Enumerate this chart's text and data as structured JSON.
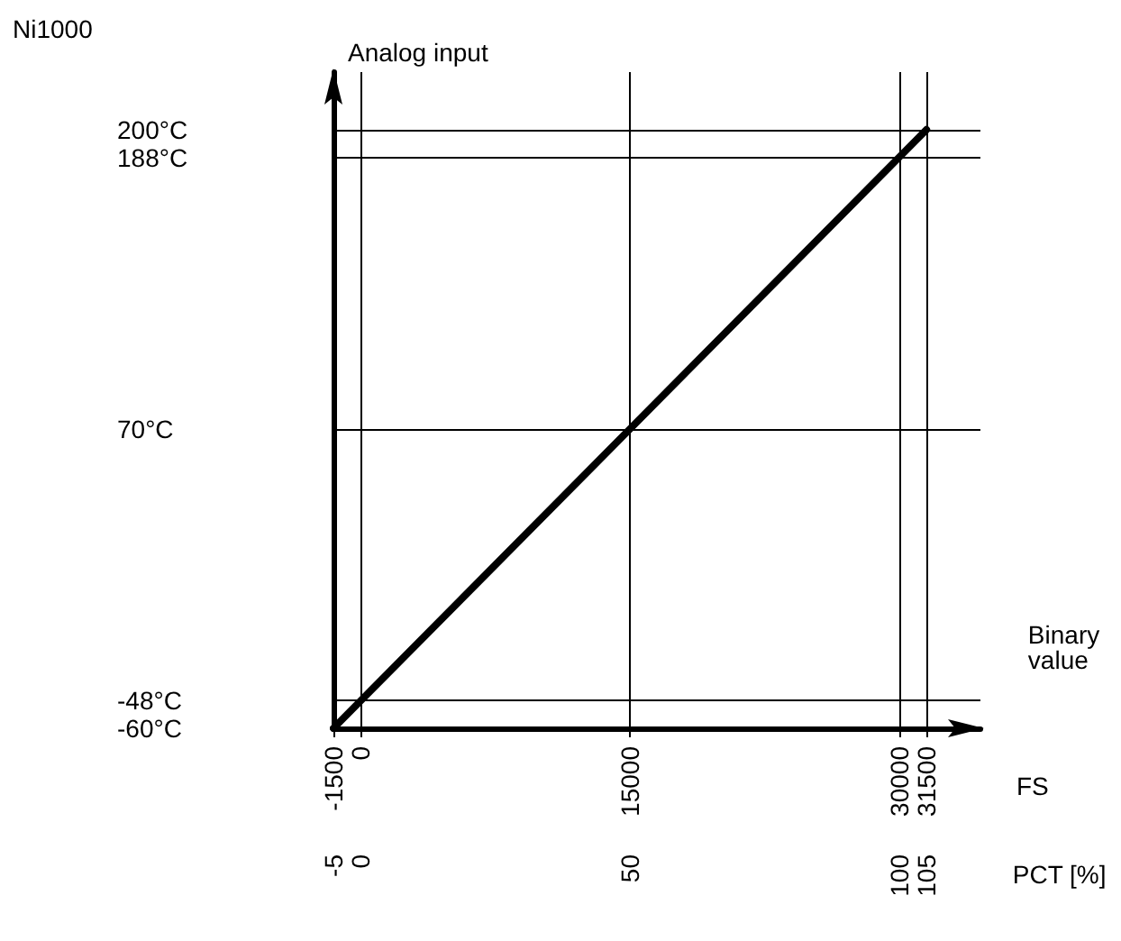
{
  "chart_data": {
    "type": "line",
    "title": "Ni1000",
    "xlabel": "FS",
    "ylabel": "Analog input",
    "x2label": "PCT [%]",
    "annotations": [
      "Binary value"
    ],
    "series": [
      {
        "color": "#000000",
        "x": [
          -1500,
          31500
        ],
        "values": [
          -60,
          200
        ]
      }
    ],
    "xlim": [
      -1500,
      34500
    ],
    "xticks": [
      -1500,
      0,
      15000,
      30000,
      31500
    ],
    "x2lim": [
      -5,
      115
    ],
    "x2ticks": [
      -5,
      0,
      50,
      100,
      105
    ],
    "ylim": [
      -60,
      225
    ],
    "yticks": [
      {
        "value": -60,
        "label": "-60°C"
      },
      {
        "value": -48,
        "label": "-48°C"
      },
      {
        "value": 70,
        "label": "70°C"
      },
      {
        "value": 188,
        "label": "188°C"
      },
      {
        "value": 200,
        "label": "200°C"
      }
    ],
    "grid": true,
    "marker": "none",
    "line_style": "solid"
  }
}
